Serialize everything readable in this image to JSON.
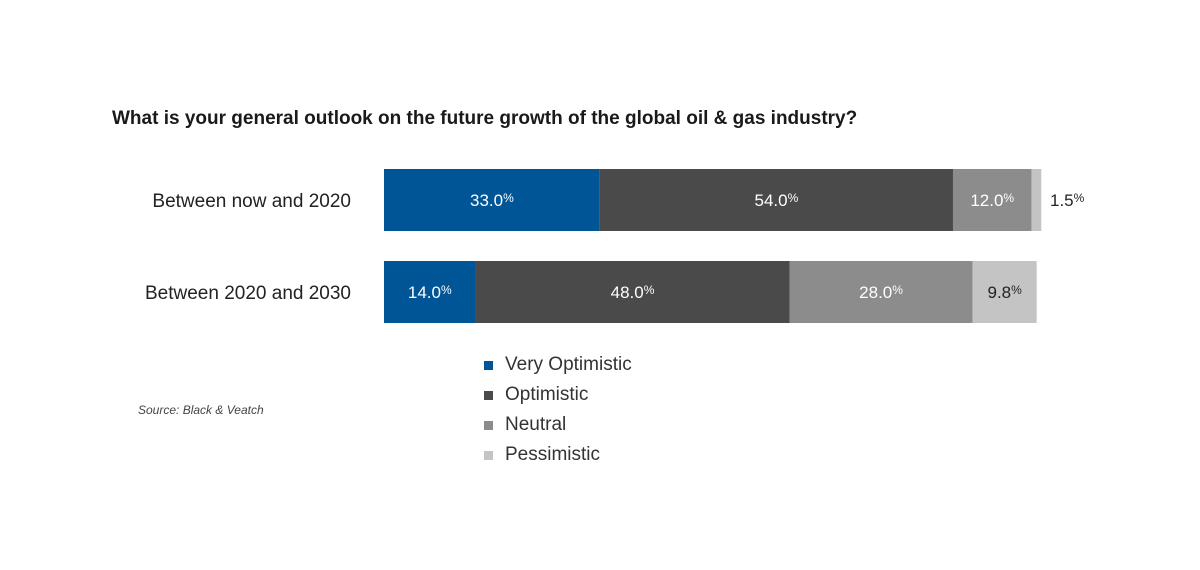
{
  "chart_data": {
    "type": "bar",
    "orientation": "horizontal",
    "stacked": true,
    "title": "What is your general outlook on the future growth of the global oil & gas industry?",
    "categories": [
      "Between now and 2020",
      "Between 2020 and 2030"
    ],
    "series": [
      {
        "name": "Very Optimistic",
        "color": "#005596",
        "values": [
          33.0,
          14.0
        ],
        "labels": [
          "33.0",
          "14.0"
        ]
      },
      {
        "name": "Optimistic",
        "color": "#4a4a4a",
        "values": [
          54.0,
          48.0
        ],
        "labels": [
          "54.0",
          "48.0"
        ]
      },
      {
        "name": "Neutral",
        "color": "#8c8c8c",
        "values": [
          12.0,
          28.0
        ],
        "labels": [
          "12.0",
          "28.0"
        ]
      },
      {
        "name": "Pessimistic",
        "color": "#c4c4c4",
        "values": [
          1.5,
          9.8
        ],
        "labels": [
          "1.5",
          "9.8"
        ]
      }
    ],
    "unit": "%",
    "xlim": [
      0,
      100
    ],
    "legend_position": "bottom",
    "source": "Source: Black & Veatch"
  }
}
